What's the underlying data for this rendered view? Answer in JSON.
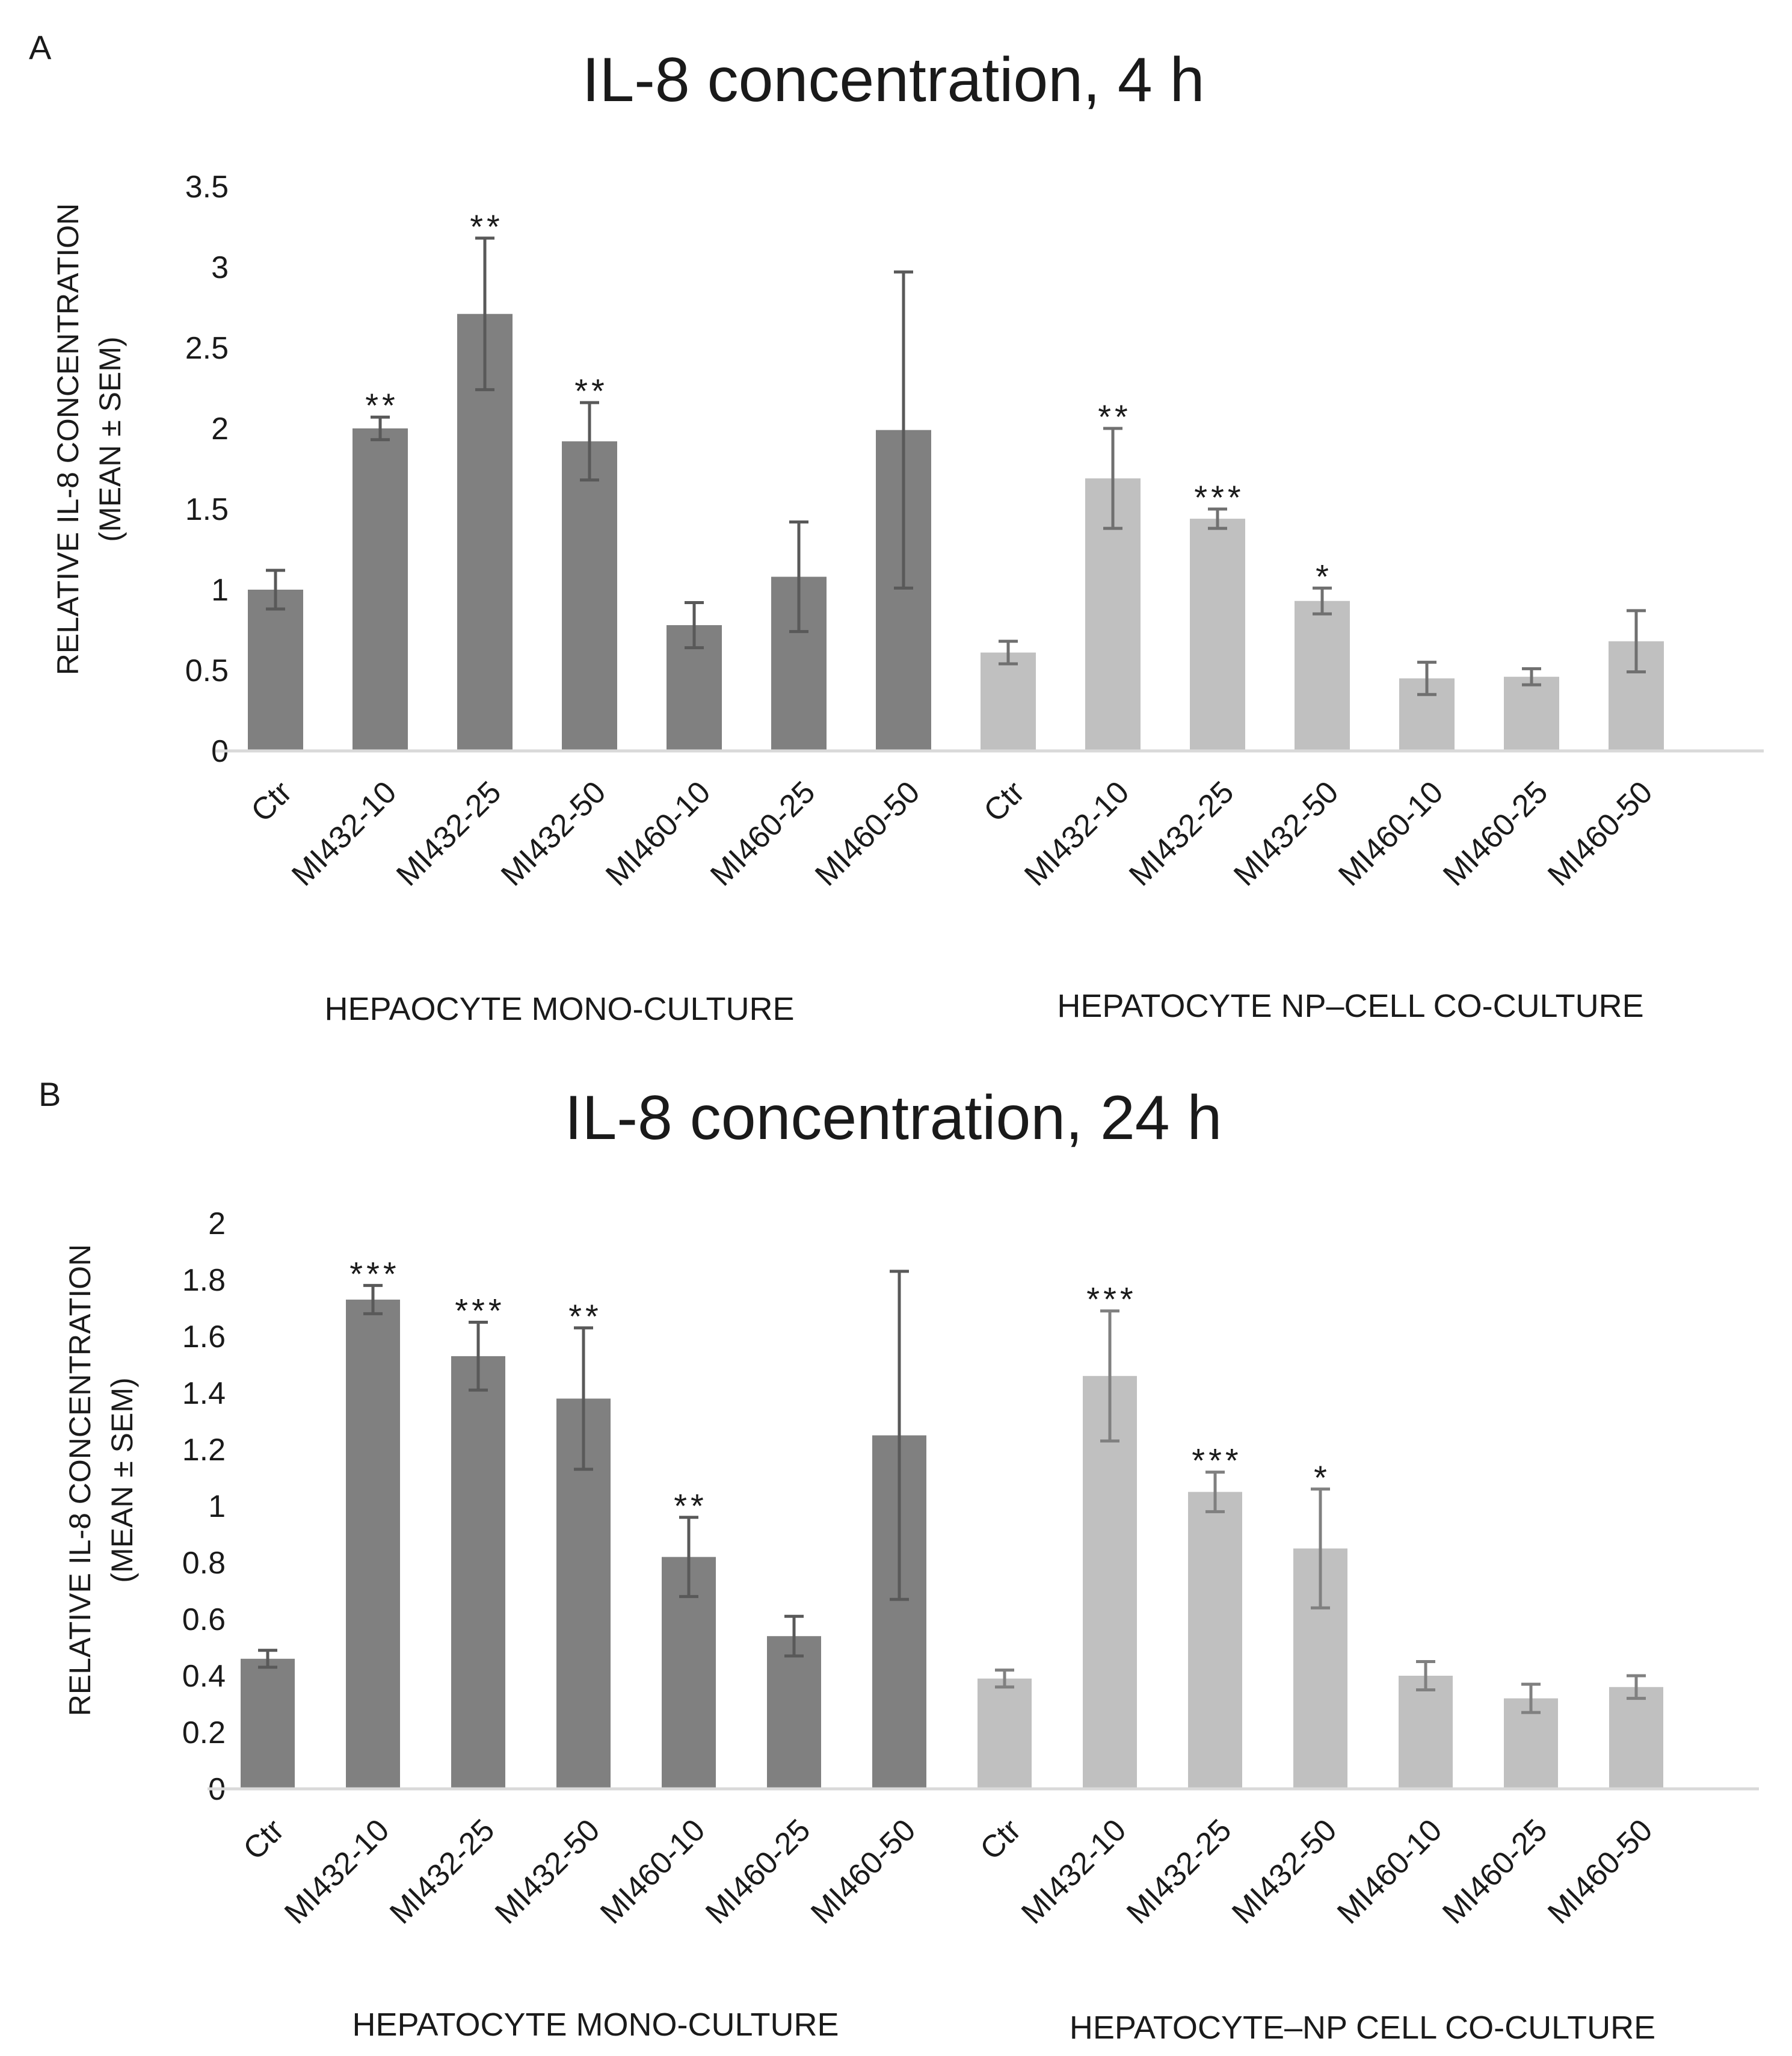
{
  "chart_data": [
    {
      "type": "bar",
      "panel": "A",
      "title": "IL-8 concentration, 4 h",
      "ylabel_lines": [
        "RELATIVE IL-8 CONCENTRATION",
        "(MEAN ± SEM)"
      ],
      "ylim": [
        0,
        3.5
      ],
      "yticks": [
        "0",
        "0.5",
        "1",
        "1.5",
        "2",
        "2.5",
        "3",
        "3.5"
      ],
      "categories": [
        "Ctr",
        "MI432-10",
        "MI432-25",
        "MI432-50",
        "MI460-10",
        "MI460-25",
        "MI460-50",
        "Ctr",
        "MI432-10",
        "MI432-25",
        "MI432-50",
        "MI460-10",
        "MI460-25",
        "MI460-50"
      ],
      "groups": [
        {
          "label": "HEPAOCYTE MONO-CULTURE",
          "color": "#808080",
          "errcolor": "#595959",
          "values": [
            1.0,
            2.0,
            2.71,
            1.92,
            0.78,
            1.08,
            1.99
          ],
          "errors": [
            0.12,
            0.07,
            0.47,
            0.24,
            0.14,
            0.34,
            0.98
          ],
          "significance": [
            "",
            "**",
            "**",
            "**",
            "",
            "",
            ""
          ]
        },
        {
          "label": "HEPATOCYTE  NP–CELL CO-CULTURE",
          "color": "#c0c0c0",
          "errcolor": "#707070",
          "values": [
            0.61,
            1.69,
            1.44,
            0.93,
            0.45,
            0.46,
            0.68
          ],
          "errors": [
            0.07,
            0.31,
            0.06,
            0.08,
            0.1,
            0.05,
            0.19
          ],
          "significance": [
            "",
            "**",
            "***",
            "*",
            "",
            "",
            ""
          ]
        }
      ]
    },
    {
      "type": "bar",
      "panel": "B",
      "title": "IL-8 concentration, 24 h",
      "ylabel_lines": [
        "RELATIVE IL-8 CONCENTRATION",
        "(MEAN ± SEM)"
      ],
      "ylim": [
        0,
        2
      ],
      "yticks": [
        "0",
        "0.2",
        "0.4",
        "0.6",
        "0.8",
        "1",
        "1.2",
        "1.4",
        "1.6",
        "1.8",
        "2"
      ],
      "categories": [
        "Ctr",
        "MI432-10",
        "MI432-25",
        "MI432-50",
        "MI460-10",
        "MI460-25",
        "MI460-50",
        "Ctr",
        "MI432-10",
        "MI432-25",
        "MI432-50",
        "MI460-10",
        "MI460-25",
        "MI460-50"
      ],
      "groups": [
        {
          "label": "HEPATOCYTE MONO-CULTURE",
          "color": "#808080",
          "errcolor": "#595959",
          "values": [
            0.46,
            1.73,
            1.53,
            1.38,
            0.82,
            0.54,
            1.25
          ],
          "errors": [
            0.03,
            0.05,
            0.12,
            0.25,
            0.14,
            0.07,
            0.58
          ],
          "significance": [
            "",
            "***",
            "***",
            "**",
            "**",
            "",
            ""
          ]
        },
        {
          "label": "HEPATOCYTE–NP CELL CO-CULTURE",
          "color": "#c0c0c0",
          "errcolor": "#808080",
          "values": [
            0.39,
            1.46,
            1.05,
            0.85,
            0.4,
            0.32,
            0.36
          ],
          "errors": [
            0.03,
            0.23,
            0.07,
            0.21,
            0.05,
            0.05,
            0.04
          ],
          "significance": [
            "",
            "***",
            "***",
            "*",
            "",
            "",
            ""
          ]
        }
      ]
    }
  ]
}
